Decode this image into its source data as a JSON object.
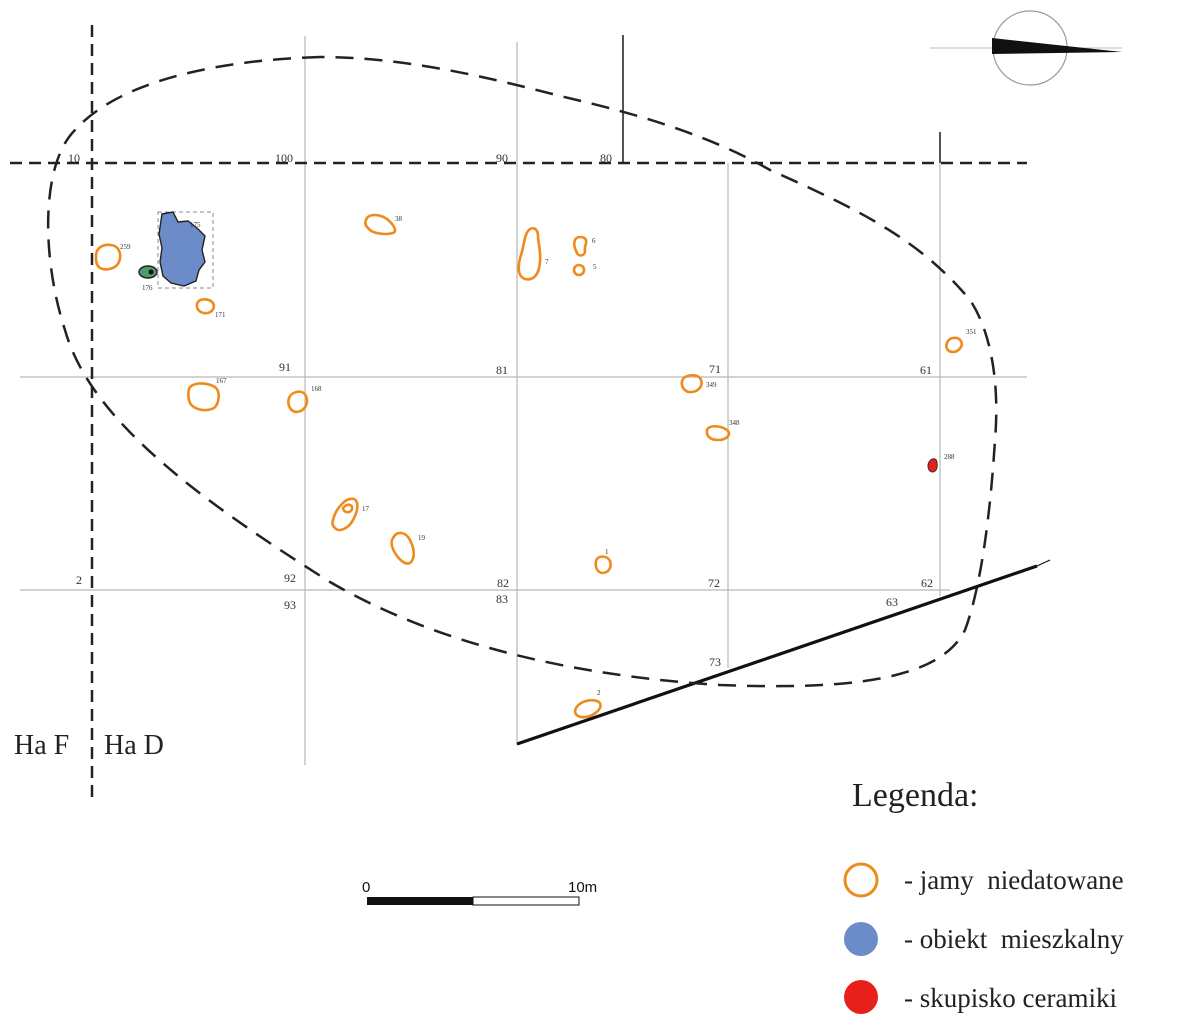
{
  "grid": {
    "labels": [
      "10",
      "100",
      "90",
      "80",
      "91",
      "81",
      "71",
      "61",
      "2",
      "92",
      "82",
      "72",
      "62",
      "93",
      "83",
      "63",
      "73"
    ]
  },
  "zones": {
    "left": "Ha F",
    "right": "Ha D"
  },
  "features": [
    {
      "id": "259",
      "type": "pit"
    },
    {
      "id": "175",
      "type": "dwelling"
    },
    {
      "id": "176",
      "type": "dwelling-small"
    },
    {
      "id": "171",
      "type": "pit"
    },
    {
      "id": "38",
      "type": "pit"
    },
    {
      "id": "7",
      "type": "pit"
    },
    {
      "id": "6",
      "type": "pit"
    },
    {
      "id": "5",
      "type": "pit"
    },
    {
      "id": "351",
      "type": "pit"
    },
    {
      "id": "167",
      "type": "pit"
    },
    {
      "id": "168",
      "type": "pit"
    },
    {
      "id": "349",
      "type": "pit"
    },
    {
      "id": "348",
      "type": "pit"
    },
    {
      "id": "288",
      "type": "ceramics"
    },
    {
      "id": "17",
      "type": "pit"
    },
    {
      "id": "19",
      "type": "pit"
    },
    {
      "id": "1",
      "type": "pit"
    },
    {
      "id": "2",
      "type": "pit"
    }
  ],
  "scale_bar": {
    "start": "0",
    "end": "10m",
    "length_m": 10
  },
  "legend": {
    "title": "Legenda:",
    "items": [
      {
        "symbol": "orange-ring",
        "color": "#f08a1c",
        "label": "- jamy  niedatowane"
      },
      {
        "symbol": "blue-dot",
        "color": "#6b8cc8",
        "label": "- obiekt  mieszkalny"
      },
      {
        "symbol": "red-dot",
        "color": "#e8201c",
        "label": "- skupisko ceramiki"
      }
    ]
  },
  "colors": {
    "pit": "#f08a1c",
    "dwelling": "#6b8cc8",
    "ceramics": "#e8201c",
    "small_dwelling": "#4f9a6a"
  },
  "north_arrow": {
    "icon": "north-arrow-icon"
  }
}
